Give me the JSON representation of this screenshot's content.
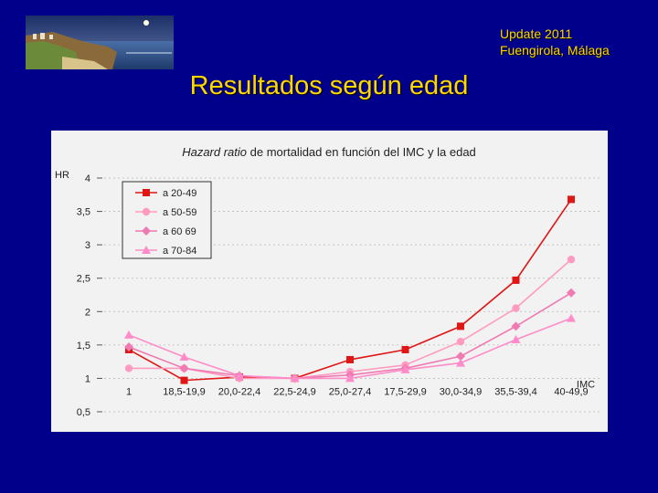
{
  "header": {
    "update_line1": "Update 2011",
    "update_line2": "Fuengirola, Málaga"
  },
  "slide_title": "Resultados según edad",
  "chart_data": {
    "type": "line",
    "title_italic": "Hazard ratio",
    "title_rest": " de mortalidad en función del IMC y la edad",
    "ylabel": "HR",
    "xlabel": "IMC",
    "ylim": [
      0.5,
      4
    ],
    "yticks": [
      "0,5",
      "1",
      "1,5",
      "2",
      "2,5",
      "3",
      "3,5",
      "4"
    ],
    "ytick_values": [
      0.5,
      1,
      1.5,
      2,
      2.5,
      3,
      3.5,
      4
    ],
    "grid": true,
    "legend_position": "top-left",
    "categories": [
      "1",
      "18,5-19,9",
      "20,0-22,4",
      "22,5-24,9",
      "25,0-27,4",
      "17,5-29,9",
      "30,0-34,9",
      "35,5-39,4",
      "40-49,9"
    ],
    "series": [
      {
        "name": "a 20-49",
        "marker": "square",
        "color": "#e01515",
        "values": [
          1.43,
          0.97,
          1.02,
          1.0,
          1.28,
          1.43,
          1.78,
          2.47,
          3.68
        ]
      },
      {
        "name": "a 50-59",
        "marker": "circle",
        "color": "#ff9bc0",
        "values": [
          1.15,
          1.15,
          1.0,
          1.0,
          1.1,
          1.2,
          1.55,
          2.05,
          2.78
        ]
      },
      {
        "name": "a 60 69",
        "marker": "diamond",
        "color": "#f07ab2",
        "values": [
          1.47,
          1.15,
          1.04,
          1.0,
          1.05,
          1.15,
          1.33,
          1.78,
          2.28
        ]
      },
      {
        "name": "a 70-84",
        "marker": "triangle",
        "color": "#ff8cc8",
        "values": [
          1.65,
          1.32,
          1.04,
          1.0,
          1.0,
          1.13,
          1.23,
          1.58,
          1.9
        ]
      }
    ]
  }
}
